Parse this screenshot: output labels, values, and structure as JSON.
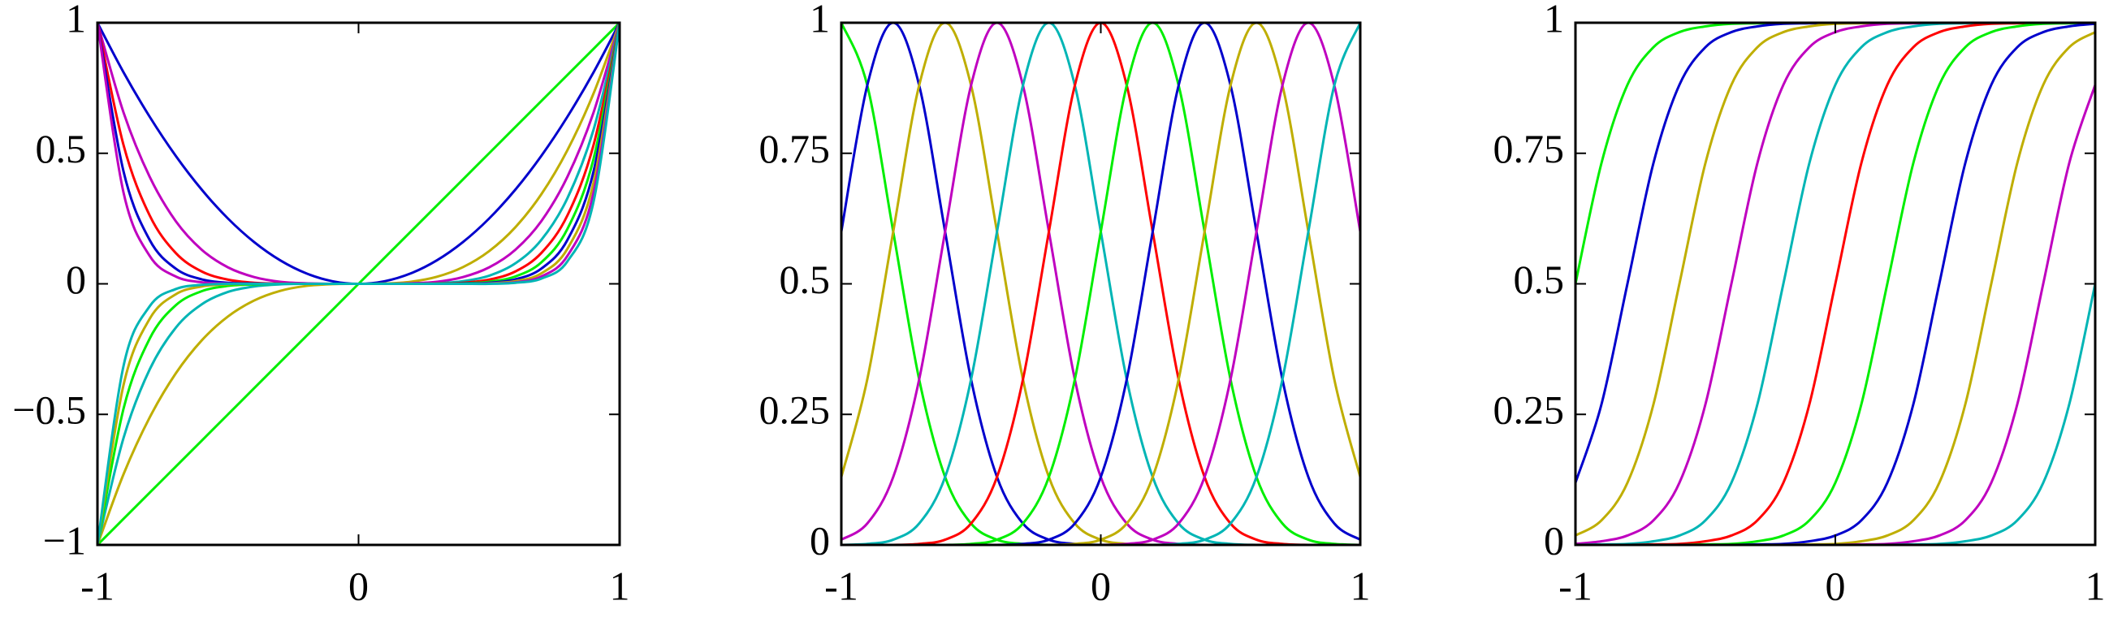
{
  "chart_data": [
    {
      "type": "line",
      "x": [
        -1,
        -0.9,
        -0.8,
        -0.7,
        -0.6,
        -0.5,
        -0.4,
        -0.3,
        -0.2,
        -0.1,
        0,
        0.1,
        0.2,
        0.3,
        0.4,
        0.5,
        0.6,
        0.7,
        0.8,
        0.9,
        1
      ],
      "xlim": [
        -1,
        1
      ],
      "xticks": [
        -1,
        0,
        1
      ],
      "ylim": [
        -1,
        1
      ],
      "yticks": [
        {
          "value": -1,
          "label": "−1"
        },
        {
          "value": -0.5,
          "label": "−0.5"
        },
        0,
        0.5,
        1
      ],
      "series": [
        {
          "color": "#00ee00",
          "values": [
            -1,
            -0.9,
            -0.8,
            -0.7,
            -0.6,
            -0.5,
            -0.4,
            -0.3,
            -0.2,
            -0.1,
            0,
            0.1,
            0.2,
            0.3,
            0.4,
            0.5,
            0.6,
            0.7,
            0.8,
            0.9,
            1
          ]
        },
        {
          "color": "#0000cc",
          "values": [
            1,
            0.81,
            0.64,
            0.49,
            0.36,
            0.25,
            0.16,
            0.09,
            0.04,
            0.01,
            0,
            0.01,
            0.04,
            0.09,
            0.16,
            0.25,
            0.36,
            0.49,
            0.64,
            0.81,
            1
          ]
        },
        {
          "color": "#bfae00",
          "values": [
            -1,
            -0.729,
            -0.512,
            -0.343,
            -0.216,
            -0.125,
            -0.064,
            -0.027,
            -0.008,
            -0.001,
            0,
            0.001,
            0.008,
            0.027,
            0.064,
            0.125,
            0.216,
            0.343,
            0.512,
            0.729,
            1
          ]
        },
        {
          "color": "#bf00bf",
          "values": [
            1,
            0.656,
            0.41,
            0.24,
            0.13,
            0.063,
            0.026,
            0.008,
            0.002,
            0,
            0,
            0,
            0.002,
            0.008,
            0.026,
            0.063,
            0.13,
            0.24,
            0.41,
            0.656,
            1
          ]
        },
        {
          "color": "#00b5b5",
          "values": [
            -1,
            -0.59,
            -0.328,
            -0.168,
            -0.078,
            -0.031,
            -0.01,
            -0.002,
            0,
            0,
            0,
            0,
            0,
            0.002,
            0.01,
            0.031,
            0.078,
            0.168,
            0.328,
            0.59,
            1
          ]
        },
        {
          "color": "#ff0000",
          "values": [
            1,
            0.531,
            0.262,
            0.118,
            0.047,
            0.016,
            0.004,
            0.001,
            0,
            0,
            0,
            0,
            0,
            0.001,
            0.004,
            0.016,
            0.047,
            0.118,
            0.262,
            0.531,
            1
          ]
        },
        {
          "color": "#00ee00",
          "values": [
            -1,
            -0.478,
            -0.21,
            -0.082,
            -0.028,
            -0.008,
            -0.002,
            0,
            0,
            0,
            0,
            0,
            0,
            0,
            0.002,
            0.008,
            0.028,
            0.082,
            0.21,
            0.478,
            1
          ]
        },
        {
          "color": "#0000cc",
          "values": [
            1,
            0.43,
            0.168,
            0.058,
            0.017,
            0.004,
            0.001,
            0,
            0,
            0,
            0,
            0,
            0,
            0,
            0.001,
            0.004,
            0.017,
            0.058,
            0.168,
            0.43,
            1
          ]
        },
        {
          "color": "#bfae00",
          "values": [
            -1,
            -0.387,
            -0.134,
            -0.04,
            -0.01,
            -0.002,
            0,
            0,
            0,
            0,
            0,
            0,
            0,
            0,
            0,
            0.002,
            0.01,
            0.04,
            0.134,
            0.387,
            1
          ]
        },
        {
          "color": "#bf00bf",
          "values": [
            1,
            0.349,
            0.107,
            0.028,
            0.006,
            0.001,
            0,
            0,
            0,
            0,
            0,
            0,
            0,
            0,
            0,
            0.001,
            0.006,
            0.028,
            0.107,
            0.349,
            1
          ]
        },
        {
          "color": "#00b5b5",
          "values": [
            -1,
            -0.314,
            -0.086,
            -0.02,
            -0.004,
            0,
            0,
            0,
            0,
            0,
            0,
            0,
            0,
            0,
            0,
            0,
            0.004,
            0.02,
            0.086,
            0.314,
            1
          ]
        }
      ]
    },
    {
      "type": "line",
      "x": [
        -1,
        -0.9,
        -0.8,
        -0.7,
        -0.6,
        -0.5,
        -0.4,
        -0.3,
        -0.2,
        -0.1,
        0,
        0.1,
        0.2,
        0.3,
        0.4,
        0.5,
        0.6,
        0.7,
        0.8,
        0.9,
        1
      ],
      "xlim": [
        -1,
        1
      ],
      "xticks": [
        -1,
        0,
        1
      ],
      "ylim": [
        0,
        1
      ],
      "yticks": [
        0,
        0.25,
        0.5,
        0.75,
        1
      ],
      "series": [
        {
          "color": "#00ee00",
          "values": [
            1,
            0.88,
            0.6,
            0.317,
            0.13,
            0.041,
            0.01,
            0.002,
            0,
            0,
            0,
            0,
            0,
            0,
            0,
            0,
            0,
            0,
            0,
            0,
            0
          ]
        },
        {
          "color": "#0000cc",
          "values": [
            0.6,
            0.88,
            1,
            0.88,
            0.6,
            0.317,
            0.13,
            0.041,
            0.01,
            0.002,
            0,
            0,
            0,
            0,
            0,
            0,
            0,
            0,
            0,
            0,
            0
          ]
        },
        {
          "color": "#bfae00",
          "values": [
            0.13,
            0.317,
            0.6,
            0.88,
            1,
            0.88,
            0.6,
            0.317,
            0.13,
            0.041,
            0.01,
            0.002,
            0,
            0,
            0,
            0,
            0,
            0,
            0,
            0,
            0
          ]
        },
        {
          "color": "#bf00bf",
          "values": [
            0.01,
            0.041,
            0.13,
            0.317,
            0.6,
            0.88,
            1,
            0.88,
            0.6,
            0.317,
            0.13,
            0.041,
            0.01,
            0.002,
            0,
            0,
            0,
            0,
            0,
            0,
            0
          ]
        },
        {
          "color": "#00b5b5",
          "values": [
            0,
            0.002,
            0.01,
            0.041,
            0.13,
            0.317,
            0.6,
            0.88,
            1,
            0.88,
            0.6,
            0.317,
            0.13,
            0.041,
            0.01,
            0.002,
            0,
            0,
            0,
            0,
            0
          ]
        },
        {
          "color": "#ff0000",
          "values": [
            0,
            0,
            0,
            0.002,
            0.01,
            0.041,
            0.13,
            0.317,
            0.6,
            0.88,
            1,
            0.88,
            0.6,
            0.317,
            0.13,
            0.041,
            0.01,
            0.002,
            0,
            0,
            0
          ]
        },
        {
          "color": "#00ee00",
          "values": [
            0,
            0,
            0,
            0,
            0,
            0.002,
            0.01,
            0.041,
            0.13,
            0.317,
            0.6,
            0.88,
            1,
            0.88,
            0.6,
            0.317,
            0.13,
            0.041,
            0.01,
            0.002,
            0
          ]
        },
        {
          "color": "#0000cc",
          "values": [
            0,
            0,
            0,
            0,
            0,
            0,
            0,
            0.002,
            0.01,
            0.041,
            0.13,
            0.317,
            0.6,
            0.88,
            1,
            0.88,
            0.6,
            0.317,
            0.13,
            0.041,
            0.01
          ]
        },
        {
          "color": "#bfae00",
          "values": [
            0,
            0,
            0,
            0,
            0,
            0,
            0,
            0,
            0,
            0.002,
            0.01,
            0.041,
            0.13,
            0.317,
            0.6,
            0.88,
            1,
            0.88,
            0.6,
            0.317,
            0.13
          ]
        },
        {
          "color": "#bf00bf",
          "values": [
            0,
            0,
            0,
            0,
            0,
            0,
            0,
            0,
            0,
            0,
            0,
            0.002,
            0.01,
            0.041,
            0.13,
            0.317,
            0.6,
            0.88,
            1,
            0.88,
            0.6
          ]
        },
        {
          "color": "#00b5b5",
          "values": [
            0,
            0,
            0,
            0,
            0,
            0,
            0,
            0,
            0,
            0,
            0,
            0,
            0,
            0.002,
            0.01,
            0.041,
            0.13,
            0.317,
            0.6,
            0.88,
            1
          ]
        }
      ]
    },
    {
      "type": "line",
      "x": [
        -1,
        -0.9,
        -0.8,
        -0.7,
        -0.6,
        -0.5,
        -0.4,
        -0.3,
        -0.2,
        -0.1,
        0,
        0.1,
        0.2,
        0.3,
        0.4,
        0.5,
        0.6,
        0.7,
        0.8,
        0.9,
        1
      ],
      "xlim": [
        -1,
        1
      ],
      "xticks": [
        -1,
        0,
        1
      ],
      "ylim": [
        0,
        1
      ],
      "yticks": [
        0,
        0.25,
        0.5,
        0.75,
        1
      ],
      "series": [
        {
          "color": "#00ee00",
          "values": [
            0.5,
            0.731,
            0.881,
            0.953,
            0.982,
            0.993,
            0.998,
            0.999,
            1,
            1,
            1,
            1,
            1,
            1,
            1,
            1,
            1,
            1,
            1,
            1,
            1
          ]
        },
        {
          "color": "#0000cc",
          "values": [
            0.119,
            0.269,
            0.5,
            0.731,
            0.881,
            0.953,
            0.982,
            0.993,
            0.998,
            0.999,
            1,
            1,
            1,
            1,
            1,
            1,
            1,
            1,
            1,
            1,
            1
          ]
        },
        {
          "color": "#bfae00",
          "values": [
            0.018,
            0.047,
            0.119,
            0.269,
            0.5,
            0.731,
            0.881,
            0.953,
            0.982,
            0.993,
            0.998,
            0.999,
            1,
            1,
            1,
            1,
            1,
            1,
            1,
            1,
            1
          ]
        },
        {
          "color": "#bf00bf",
          "values": [
            0.002,
            0.007,
            0.018,
            0.047,
            0.119,
            0.269,
            0.5,
            0.731,
            0.881,
            0.953,
            0.982,
            0.993,
            0.998,
            0.999,
            1,
            1,
            1,
            1,
            1,
            1,
            1
          ]
        },
        {
          "color": "#00b5b5",
          "values": [
            0,
            0.001,
            0.002,
            0.007,
            0.018,
            0.047,
            0.119,
            0.269,
            0.5,
            0.731,
            0.881,
            0.953,
            0.982,
            0.993,
            0.998,
            0.999,
            1,
            1,
            1,
            1,
            1
          ]
        },
        {
          "color": "#ff0000",
          "values": [
            0,
            0,
            0,
            0.001,
            0.002,
            0.007,
            0.018,
            0.047,
            0.119,
            0.269,
            0.5,
            0.731,
            0.881,
            0.953,
            0.982,
            0.993,
            0.998,
            0.999,
            1,
            1,
            1
          ]
        },
        {
          "color": "#00ee00",
          "values": [
            0,
            0,
            0,
            0,
            0,
            0.001,
            0.002,
            0.007,
            0.018,
            0.047,
            0.119,
            0.269,
            0.5,
            0.731,
            0.881,
            0.953,
            0.982,
            0.993,
            0.998,
            0.999,
            1
          ]
        },
        {
          "color": "#0000cc",
          "values": [
            0,
            0,
            0,
            0,
            0,
            0,
            0,
            0.001,
            0.002,
            0.007,
            0.018,
            0.047,
            0.119,
            0.269,
            0.5,
            0.731,
            0.881,
            0.953,
            0.982,
            0.993,
            0.998
          ]
        },
        {
          "color": "#bfae00",
          "values": [
            0,
            0,
            0,
            0,
            0,
            0,
            0,
            0,
            0,
            0.001,
            0.002,
            0.007,
            0.018,
            0.047,
            0.119,
            0.269,
            0.5,
            0.731,
            0.881,
            0.953,
            0.982
          ]
        },
        {
          "color": "#bf00bf",
          "values": [
            0,
            0,
            0,
            0,
            0,
            0,
            0,
            0,
            0,
            0,
            0,
            0.001,
            0.002,
            0.007,
            0.018,
            0.047,
            0.119,
            0.269,
            0.5,
            0.731,
            0.881
          ]
        },
        {
          "color": "#00b5b5",
          "values": [
            0,
            0,
            0,
            0,
            0,
            0,
            0,
            0,
            0,
            0,
            0,
            0,
            0,
            0.001,
            0.002,
            0.007,
            0.018,
            0.047,
            0.119,
            0.269,
            0.5
          ]
        }
      ]
    }
  ]
}
